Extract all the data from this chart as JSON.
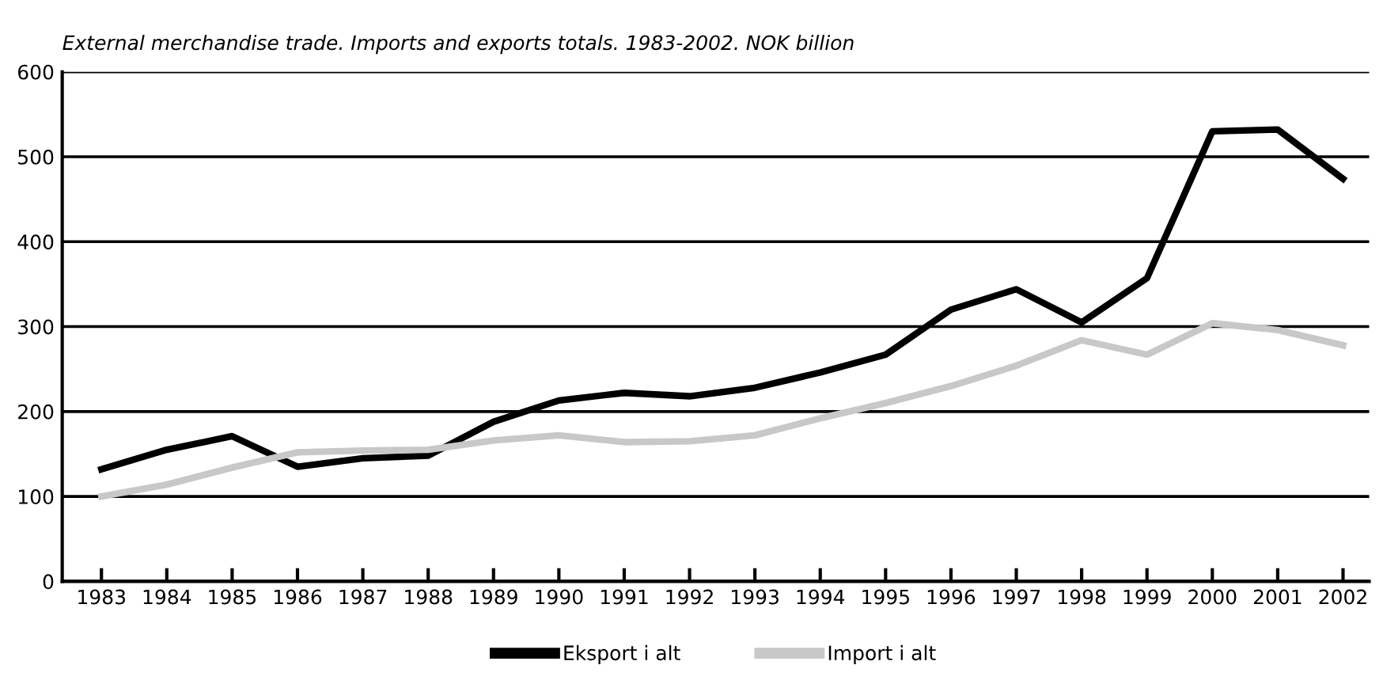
{
  "chart_data": {
    "type": "line",
    "title": "External merchandise trade. Imports and exports totals. 1983-2002. NOK billion",
    "categories": [
      "1983",
      "1984",
      "1985",
      "1986",
      "1987",
      "1988",
      "1989",
      "1990",
      "1991",
      "1992",
      "1993",
      "1994",
      "1995",
      "1996",
      "1997",
      "1998",
      "1999",
      "2000",
      "2001",
      "2002"
    ],
    "series": [
      {
        "name": "Eksport i alt",
        "color": "#000000",
        "values": [
          132,
          155,
          171,
          135,
          145,
          148,
          188,
          213,
          222,
          218,
          228,
          246,
          267,
          320,
          344,
          305,
          357,
          530,
          532,
          474
        ]
      },
      {
        "name": "Import i alt",
        "color": "#c8c8c8",
        "values": [
          100,
          114,
          134,
          152,
          154,
          155,
          166,
          172,
          164,
          165,
          172,
          192,
          210,
          230,
          254,
          284,
          267,
          304,
          296,
          278
        ]
      }
    ],
    "ylim": [
      0,
      600
    ],
    "yticks": [
      0,
      100,
      200,
      300,
      400,
      500,
      600
    ],
    "grid": "y",
    "legend": "bottom",
    "marker": "none",
    "line_style": "solid"
  }
}
